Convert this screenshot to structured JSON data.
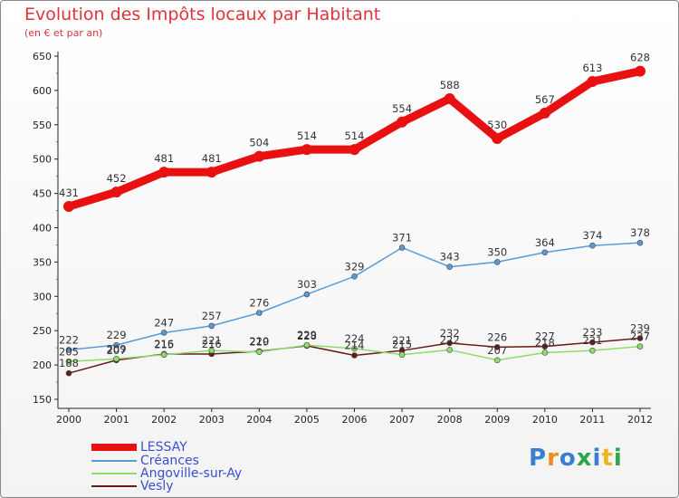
{
  "chart_data": {
    "type": "line",
    "title": "Evolution des Impôts locaux par Habitant",
    "subtitle": "(en € et par an)",
    "x": [
      "2000",
      "2001",
      "2002",
      "2003",
      "2004",
      "2005",
      "2006",
      "2007",
      "2008",
      "2009",
      "2010",
      "2011",
      "2012"
    ],
    "ylim": [
      150,
      650
    ],
    "yticks": [
      150,
      200,
      250,
      300,
      350,
      400,
      450,
      500,
      550,
      600,
      650
    ],
    "grid": false,
    "legend_position": "bottom-left",
    "series": [
      {
        "name": "LESSAY",
        "color": "#e81010",
        "values": [
          431,
          452,
          481,
          481,
          504,
          514,
          514,
          554,
          588,
          530,
          567,
          613,
          628
        ]
      },
      {
        "name": "Créances",
        "color": "#5a9bd5",
        "values": [
          222,
          229,
          247,
          257,
          276,
          303,
          329,
          371,
          343,
          350,
          364,
          374,
          378
        ]
      },
      {
        "name": "Angoville-sur-Ay",
        "color": "#8fdc6a",
        "values": [
          205,
          209,
          215,
          221,
          219,
          229,
          224,
          215,
          222,
          207,
          218,
          221,
          227
        ]
      },
      {
        "name": "Vesly",
        "color": "#6b1a1a",
        "values": [
          188,
          207,
          216,
          216,
          220,
          228,
          214,
          221,
          232,
          226,
          227,
          233,
          239
        ]
      }
    ]
  },
  "logo_text": "Proxiti"
}
